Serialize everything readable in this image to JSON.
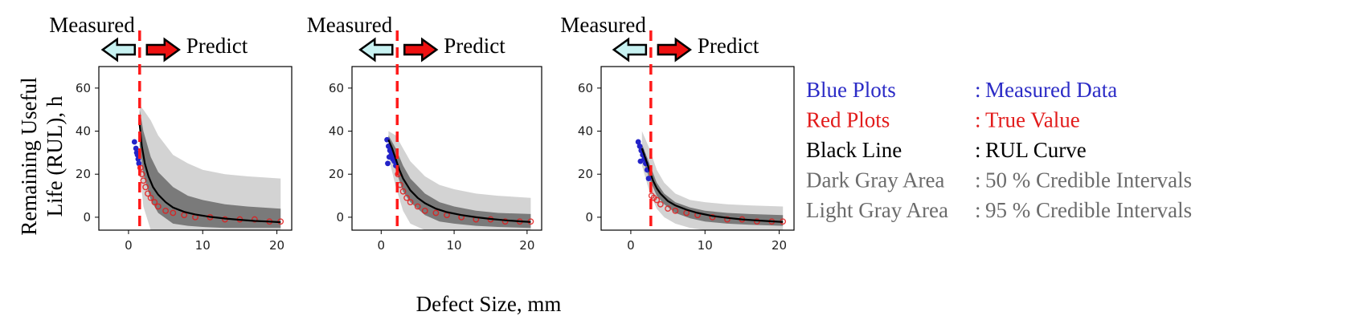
{
  "figure": {
    "ylabel_line1": "Remaining Useful",
    "ylabel_line2": "Life (RUL), h",
    "xlabel": "Defect Size, mm",
    "measured_label": "Measured",
    "predict_label": "Predict"
  },
  "colors": {
    "measured": "#2323c8",
    "true": "#e21b1b",
    "rul_curve": "#000000",
    "dark_band": "#7a7a7a",
    "light_band": "#d3d3d3",
    "split_line": "#ff1a1a",
    "measured_arrow_fill": "#c8f2f2",
    "predict_arrow_fill": "#ee1111",
    "legend_gray": "#707070"
  },
  "legend": [
    {
      "key": "Blue Plots",
      "value": "Measured Data",
      "color": "#2b2bc6"
    },
    {
      "key": "Red Plots",
      "value": "True Value",
      "color": "#e21b1b"
    },
    {
      "key": "Black Line",
      "value": "RUL Curve",
      "color": "#000000"
    },
    {
      "key": "Dark Gray Area",
      "value": "50 % Credible Intervals",
      "color": "#6b6b6b"
    },
    {
      "key": "Light Gray Area",
      "value": "95 % Credible Intervals",
      "color": "#6b6b6b"
    }
  ],
  "chart_data": [
    {
      "type": "line",
      "xlim": [
        -4,
        22
      ],
      "ylim": [
        -6,
        70
      ],
      "xticks": [
        0,
        10,
        20
      ],
      "yticks": [
        0,
        20,
        40,
        60
      ],
      "split_x": 1.5,
      "measured": {
        "x": [
          0.8,
          1.0,
          1.1,
          1.2,
          1.3,
          1.4
        ],
        "y": [
          35,
          32,
          30,
          29,
          27,
          25
        ]
      },
      "true_value": {
        "x": [
          1.6,
          1.8,
          2.0,
          2.3,
          2.6,
          3.0,
          3.5,
          4.0,
          5.0,
          6.0,
          7.5,
          9.0,
          11.0,
          13.0,
          15.0,
          17.0,
          19.0,
          20.5
        ],
        "y": [
          23,
          20,
          17,
          14,
          11,
          9,
          7,
          5,
          3,
          2,
          1,
          0,
          0,
          -1,
          -1,
          -1,
          -2,
          -2
        ]
      },
      "rul_curve": {
        "x": [
          1.5,
          1.8,
          2.2,
          2.7,
          3.3,
          4.0,
          5.0,
          6.0,
          7.5,
          9.0,
          11.0,
          13.0,
          15.0,
          17.0,
          19.0,
          20.5
        ],
        "y": [
          43,
          33,
          25,
          19,
          14,
          10.5,
          7,
          4.5,
          2.5,
          1.3,
          0.2,
          -0.6,
          -1.2,
          -1.7,
          -2,
          -2.3
        ]
      },
      "band50": {
        "x": [
          1.5,
          2.0,
          3.0,
          4.0,
          6.0,
          8.0,
          10.0,
          13.0,
          16.0,
          20.5
        ],
        "upper": [
          50,
          40,
          28,
          21,
          14,
          10,
          8,
          6,
          5,
          4
        ],
        "lower": [
          33,
          20,
          8,
          2,
          -3,
          -4,
          -4.5,
          -5,
          -5,
          -5
        ]
      },
      "band95": {
        "x": [
          1.5,
          2.0,
          3.0,
          4.0,
          6.0,
          8.0,
          10.0,
          13.0,
          16.0,
          20.5
        ],
        "upper": [
          52,
          50,
          45,
          38,
          29,
          25,
          22,
          20,
          19,
          18
        ],
        "lower": [
          22,
          5,
          -6,
          -6,
          -6,
          -6,
          -6,
          -6,
          -6,
          -6
        ]
      }
    },
    {
      "type": "line",
      "xlim": [
        -4,
        22
      ],
      "ylim": [
        -6,
        70
      ],
      "xticks": [
        0,
        10,
        20
      ],
      "yticks": [
        0,
        20,
        40,
        60
      ],
      "split_x": 2.2,
      "measured": {
        "x": [
          0.8,
          1.0,
          1.2,
          1.4,
          1.6,
          1.8,
          2.0,
          1.1,
          0.9
        ],
        "y": [
          36,
          33,
          31,
          29,
          27,
          26,
          24,
          28,
          25
        ]
      },
      "true_value": {
        "x": [
          2.3,
          2.6,
          3.0,
          3.5,
          4.0,
          5.0,
          6.0,
          7.5,
          9.0,
          11.0,
          13.0,
          15.0,
          17.0,
          19.0,
          20.5
        ],
        "y": [
          20,
          15,
          12,
          9,
          7,
          5,
          3,
          2,
          1,
          0,
          -1,
          -1,
          -2,
          -2,
          -2
        ]
      },
      "rul_curve": {
        "x": [
          1.0,
          1.5,
          2.0,
          2.5,
          3.0,
          4.0,
          5.0,
          6.0,
          7.5,
          9.0,
          11.0,
          13.0,
          15.0,
          17.0,
          19.0,
          20.5
        ],
        "y": [
          36,
          32,
          27,
          22,
          18,
          12.5,
          9,
          6.5,
          4,
          2.4,
          1,
          0,
          -0.8,
          -1.4,
          -1.9,
          -2.2
        ]
      },
      "band50": {
        "x": [
          1.0,
          2.0,
          3.0,
          4.0,
          6.0,
          8.0,
          10.0,
          13.0,
          16.0,
          20.5
        ],
        "upper": [
          38,
          32,
          24,
          18,
          11,
          7,
          5,
          3,
          2,
          1.5
        ],
        "lower": [
          32,
          22,
          12,
          7,
          1,
          -2,
          -3,
          -4,
          -4.5,
          -5
        ]
      },
      "band95": {
        "x": [
          1.0,
          2.0,
          3.0,
          4.0,
          6.0,
          8.0,
          10.0,
          13.0,
          16.0,
          20.5
        ],
        "upper": [
          40,
          38,
          32,
          26,
          19,
          15,
          13,
          11,
          10,
          9
        ],
        "lower": [
          28,
          14,
          3,
          -3,
          -6,
          -6,
          -6,
          -6,
          -6,
          -6
        ]
      }
    },
    {
      "type": "line",
      "xlim": [
        -4,
        22
      ],
      "ylim": [
        -6,
        70
      ],
      "xticks": [
        0,
        10,
        20
      ],
      "yticks": [
        0,
        20,
        40,
        60
      ],
      "split_x": 2.7,
      "measured": {
        "x": [
          1.0,
          1.2,
          1.4,
          1.6,
          1.8,
          2.0,
          2.2,
          2.4,
          1.3
        ],
        "y": [
          35,
          33,
          31,
          29,
          27,
          25,
          22,
          18,
          26
        ]
      },
      "true_value": {
        "x": [
          2.8,
          3.1,
          3.5,
          4.0,
          5.0,
          6.0,
          7.5,
          9.0,
          11.0,
          13.0,
          15.0,
          17.0,
          19.0,
          20.5
        ],
        "y": [
          10,
          9,
          8,
          6,
          4,
          3,
          2,
          1,
          0,
          -1,
          -1,
          -2,
          -2,
          -2
        ]
      },
      "rul_curve": {
        "x": [
          1.5,
          2.0,
          2.5,
          3.0,
          3.5,
          4.0,
          5.0,
          6.0,
          7.5,
          9.0,
          11.0,
          13.0,
          15.0,
          17.0,
          19.0,
          20.5
        ],
        "y": [
          32,
          27,
          22,
          17,
          13.5,
          11,
          7.5,
          5.5,
          3.5,
          2,
          0.6,
          -0.3,
          -1,
          -1.5,
          -1.9,
          -2.2
        ]
      },
      "band50": {
        "x": [
          1.5,
          2.5,
          3.5,
          4.5,
          6.0,
          8.0,
          10.0,
          13.0,
          16.0,
          20.5
        ],
        "upper": [
          34,
          25,
          16,
          11,
          7,
          4.5,
          3,
          2,
          1.5,
          1
        ],
        "lower": [
          28,
          18,
          10,
          6,
          2,
          -0.5,
          -2,
          -3,
          -3.5,
          -4
        ]
      },
      "band95": {
        "x": [
          1.5,
          2.5,
          3.5,
          4.5,
          6.0,
          8.0,
          10.0,
          13.0,
          16.0,
          20.5
        ],
        "upper": [
          40,
          32,
          22,
          16,
          11,
          8,
          7,
          6,
          5.5,
          5
        ],
        "lower": [
          24,
          12,
          4,
          0,
          -3,
          -5,
          -6,
          -6,
          -6,
          -6
        ]
      }
    }
  ]
}
